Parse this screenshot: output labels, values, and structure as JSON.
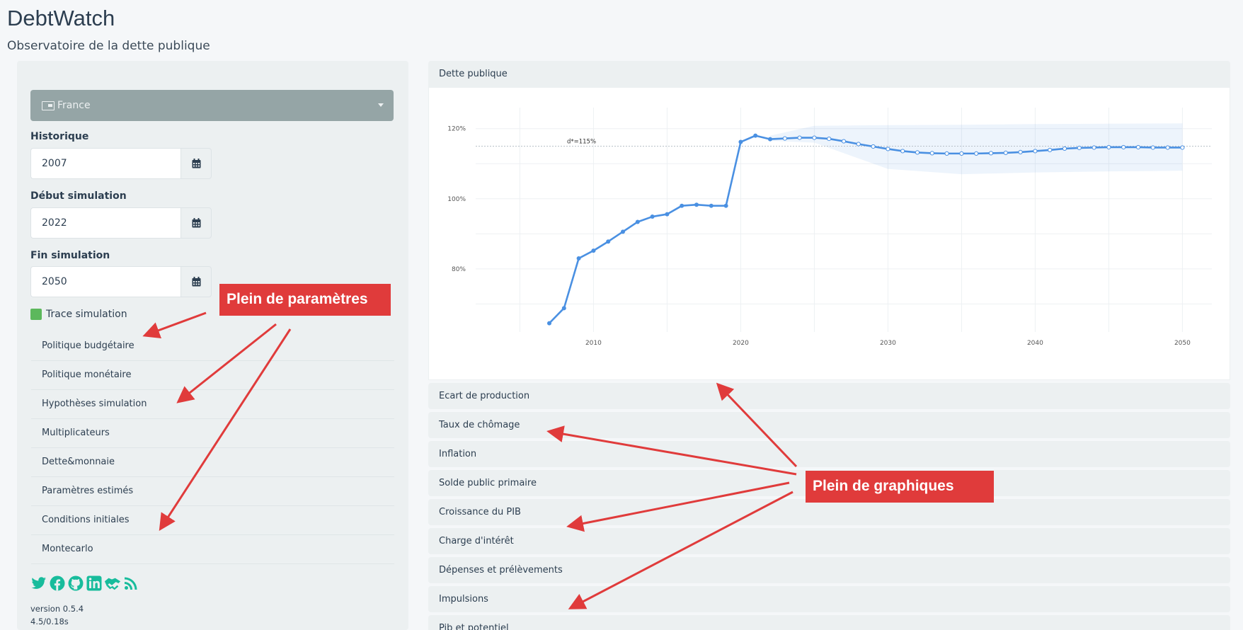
{
  "app": {
    "title": "DebtWatch",
    "subtitle": "Observatoire de la dette publique"
  },
  "sidebar": {
    "country": "France",
    "historique": {
      "label": "Historique",
      "value": "2007"
    },
    "debut": {
      "label": "Début simulation",
      "value": "2022"
    },
    "fin": {
      "label": "Fin simulation",
      "value": "2050"
    },
    "trace_label": "Trace simulation",
    "params": [
      "Politique budgétaire",
      "Politique monétaire",
      "Hypothèses simulation",
      "Multiplicateurs",
      "Dette&monnaie",
      "Paramètres estimés",
      "Conditions initiales",
      "Montecarlo"
    ],
    "social_icons": [
      "twitter-icon",
      "facebook-icon",
      "github-icon",
      "linkedin-icon",
      "handshake-icon",
      "rss-icon"
    ],
    "version": "version 0.5.4",
    "timing": "4.5/0.18s"
  },
  "panels": [
    "Dette publique",
    "Ecart de production",
    "Taux de chômage",
    "Inflation",
    "Solde public primaire",
    "Croissance du PIB",
    "Charge d'intérêt",
    "Dépenses et prélèvements",
    "Impulsions",
    "Pib et potentiel"
  ],
  "annotations": {
    "params_callout": "Plein de paramètres",
    "charts_callout": "Plein de graphiques"
  },
  "colors": {
    "accent": "#4a90e2",
    "callout": "#e03b3b",
    "select": "#95a5a6",
    "check": "#5cb85c",
    "social": "#18bc9c"
  },
  "chart_data": {
    "type": "line",
    "title": "",
    "xlabel": "",
    "ylabel": "",
    "xlim": [
      2002,
      2052
    ],
    "ylim": [
      62,
      126
    ],
    "x_ticks": [
      2010,
      2020,
      2030,
      2040,
      2050
    ],
    "y_ticks": [
      80,
      100,
      120
    ],
    "y_tick_suffix": "%",
    "reference_line": {
      "value": 115,
      "label": "d*=115%"
    },
    "historical": {
      "x": [
        2007,
        2008,
        2009,
        2010,
        2011,
        2012,
        2013,
        2014,
        2015,
        2016,
        2017,
        2018,
        2019,
        2020,
        2021,
        2022
      ],
      "y": [
        64.5,
        68.8,
        83.0,
        85.2,
        87.8,
        90.6,
        93.4,
        94.9,
        95.6,
        98.0,
        98.3,
        98.0,
        98.0,
        116.2,
        118.0,
        117.0
      ]
    },
    "simulation": {
      "x": [
        2022,
        2023,
        2024,
        2025,
        2026,
        2027,
        2028,
        2029,
        2030,
        2031,
        2032,
        2033,
        2034,
        2035,
        2036,
        2037,
        2038,
        2039,
        2040,
        2041,
        2042,
        2043,
        2044,
        2045,
        2046,
        2047,
        2048,
        2049,
        2050
      ],
      "y": [
        117.0,
        117.2,
        117.4,
        117.4,
        117.1,
        116.4,
        115.6,
        114.9,
        114.2,
        113.6,
        113.2,
        113.0,
        112.9,
        112.9,
        112.9,
        113.0,
        113.1,
        113.3,
        113.6,
        113.9,
        114.3,
        114.5,
        114.6,
        114.7,
        114.7,
        114.7,
        114.6,
        114.6,
        114.6
      ]
    },
    "confidence_band": {
      "x": [
        2022,
        2025,
        2030,
        2035,
        2040,
        2045,
        2050
      ],
      "upper": [
        118.0,
        120.8,
        121.0,
        121.1,
        121.3,
        121.4,
        121.5
      ],
      "lower": [
        116.5,
        116.0,
        108.5,
        107.0,
        107.5,
        107.8,
        108.0
      ]
    }
  }
}
